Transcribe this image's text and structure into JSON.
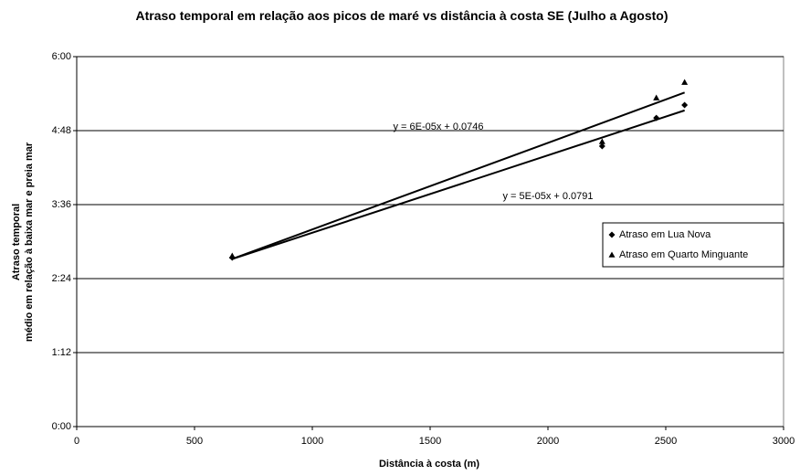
{
  "chart_data": {
    "type": "scatter",
    "title": "Atraso temporal em relação aos picos de maré vs distância à costa SE (Julho a Agosto)",
    "xlabel": "Distância à costa (m)",
    "ylabel": [
      "Atraso temporal",
      "médio em relação à baixa mar e preia mar"
    ],
    "xlim": [
      0,
      3000
    ],
    "xticks": [
      0,
      500,
      1000,
      1500,
      2000,
      2500,
      3000
    ],
    "ylim": [
      0,
      0.25
    ],
    "yticks": [
      {
        "value": 0,
        "label": "0:00"
      },
      {
        "value": 0.05,
        "label": "1:12"
      },
      {
        "value": 0.1,
        "label": "2:24"
      },
      {
        "value": 0.15,
        "label": "3:36"
      },
      {
        "value": 0.2,
        "label": "4:48"
      },
      {
        "value": 0.25,
        "label": "6:00"
      }
    ],
    "grid": true,
    "legend": "right",
    "series": [
      {
        "name": "Atraso em Lua Nova",
        "marker": "diamond",
        "color": "#000000",
        "trendline": true,
        "trendline_label": "y = 5E-05x + 0.0791",
        "x": [
          660,
          2230,
          2460,
          2580
        ],
        "values": [
          0.1142,
          0.1895,
          0.2086,
          0.2173
        ]
      },
      {
        "name": "Atraso em Quarto Minguante",
        "marker": "triangle",
        "color": "#000000",
        "trendline": true,
        "trendline_label": "y = 6E-05x + 0.0746",
        "x": [
          660,
          2230,
          2460,
          2580
        ],
        "values": [
          0.1154,
          0.1926,
          0.2222,
          0.2327
        ]
      }
    ]
  }
}
